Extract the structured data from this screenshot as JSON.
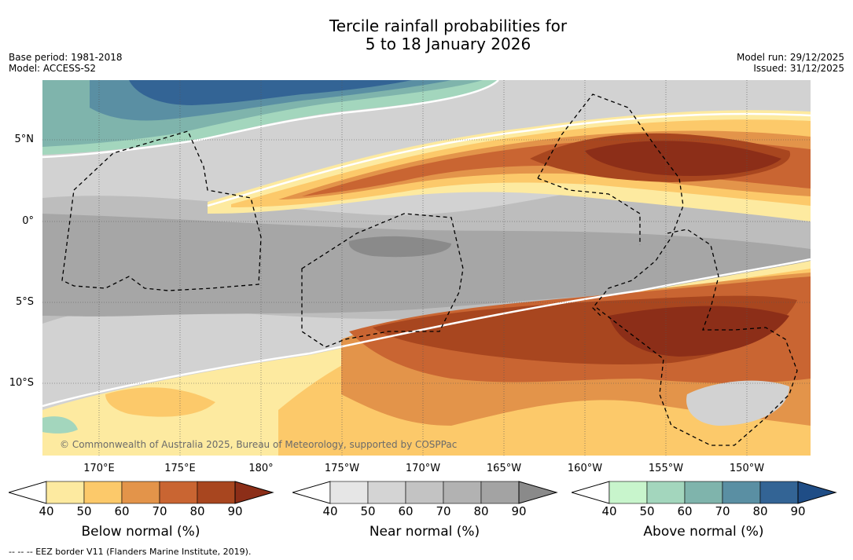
{
  "title_line1": "Tercile rainfall probabilities for",
  "title_line2": "5 to 18 January 2026",
  "base_period": "Base period: 1981-2018",
  "model": "Model: ACCESS-S2",
  "model_run": "Model run: 29/12/2025",
  "issued": "Issued: 31/12/2025",
  "copyright": "© Commonwealth of Australia 2025, Bureau of Meteorology, supported by COSPPac",
  "lat_labels": [
    "5°N",
    "0°",
    "5°S",
    "10°S"
  ],
  "lon_labels": [
    "170°E",
    "175°E",
    "180°",
    "175°W",
    "170°W",
    "165°W",
    "160°W",
    "155°W",
    "150°W"
  ],
  "colorbars": [
    {
      "title": "Below normal (%)",
      "ticks": [
        "40",
        "50",
        "60",
        "70",
        "80",
        "90"
      ],
      "colors": [
        "#ffffff",
        "#fdeaa0",
        "#fcc96a",
        "#e3944a",
        "#c96532",
        "#a8461f",
        "#8c2e18"
      ]
    },
    {
      "title": "Near normal (%)",
      "ticks": [
        "40",
        "50",
        "60",
        "70",
        "80",
        "90"
      ],
      "colors": [
        "#ffffff",
        "#e6e6e6",
        "#d4d4d4",
        "#c3c3c3",
        "#b2b2b2",
        "#a3a3a3",
        "#8a8a8a"
      ]
    },
    {
      "title": "Above normal (%)",
      "ticks": [
        "40",
        "50",
        "60",
        "70",
        "80",
        "90"
      ],
      "colors": [
        "#ffffff",
        "#c8f5cc",
        "#a3d6bd",
        "#7fb4ac",
        "#5a8fa3",
        "#336495",
        "#1f4d86"
      ]
    }
  ],
  "footnote": "-- -- -- EEZ border V11 (Flanders Marine Institute, 2019).",
  "map_colors": {
    "near_light": "#d2d2d2",
    "near_mid": "#bdbdbd",
    "near_dark": "#a6a6a6",
    "near_darker": "#8a8a8a",
    "below_1": "#fdeaa0",
    "below_2": "#fcc96a",
    "below_3": "#e3944a",
    "below_4": "#c96532",
    "below_5": "#a8461f",
    "below_6": "#8c2e18",
    "above_1": "#a3d6bd",
    "above_2": "#7fb4ac",
    "above_3": "#5a8fa3",
    "above_4": "#336495"
  }
}
